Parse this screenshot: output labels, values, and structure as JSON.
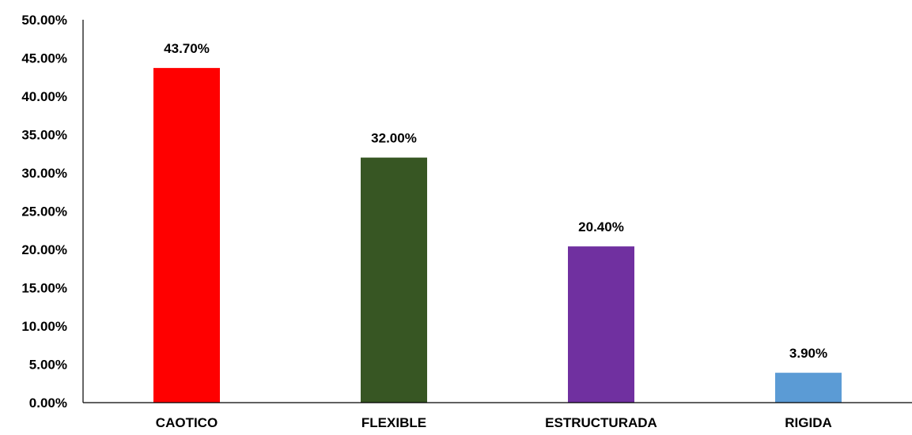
{
  "chart_data": {
    "type": "bar",
    "title": "",
    "xlabel": "",
    "ylabel": "",
    "categories": [
      "CAOTICO",
      "FLEXIBLE",
      "ESTRUCTURADA",
      "RIGIDA"
    ],
    "values": [
      43.7,
      32.0,
      20.4,
      3.9
    ],
    "value_labels": [
      "43.70%",
      "32.00%",
      "20.40%",
      "3.90%"
    ],
    "bar_colors": [
      "#ff0000",
      "#375623",
      "#7030a0",
      "#5b9bd5"
    ],
    "ylim": [
      0,
      50
    ],
    "y_ticks": [
      0,
      5,
      10,
      15,
      20,
      25,
      30,
      35,
      40,
      45,
      50
    ],
    "y_tick_labels": [
      "0.00%",
      "5.00%",
      "10.00%",
      "15.00%",
      "20.00%",
      "25.00%",
      "30.00%",
      "35.00%",
      "40.00%",
      "45.00%",
      "50.00%"
    ],
    "grid": false,
    "legend": "none"
  }
}
